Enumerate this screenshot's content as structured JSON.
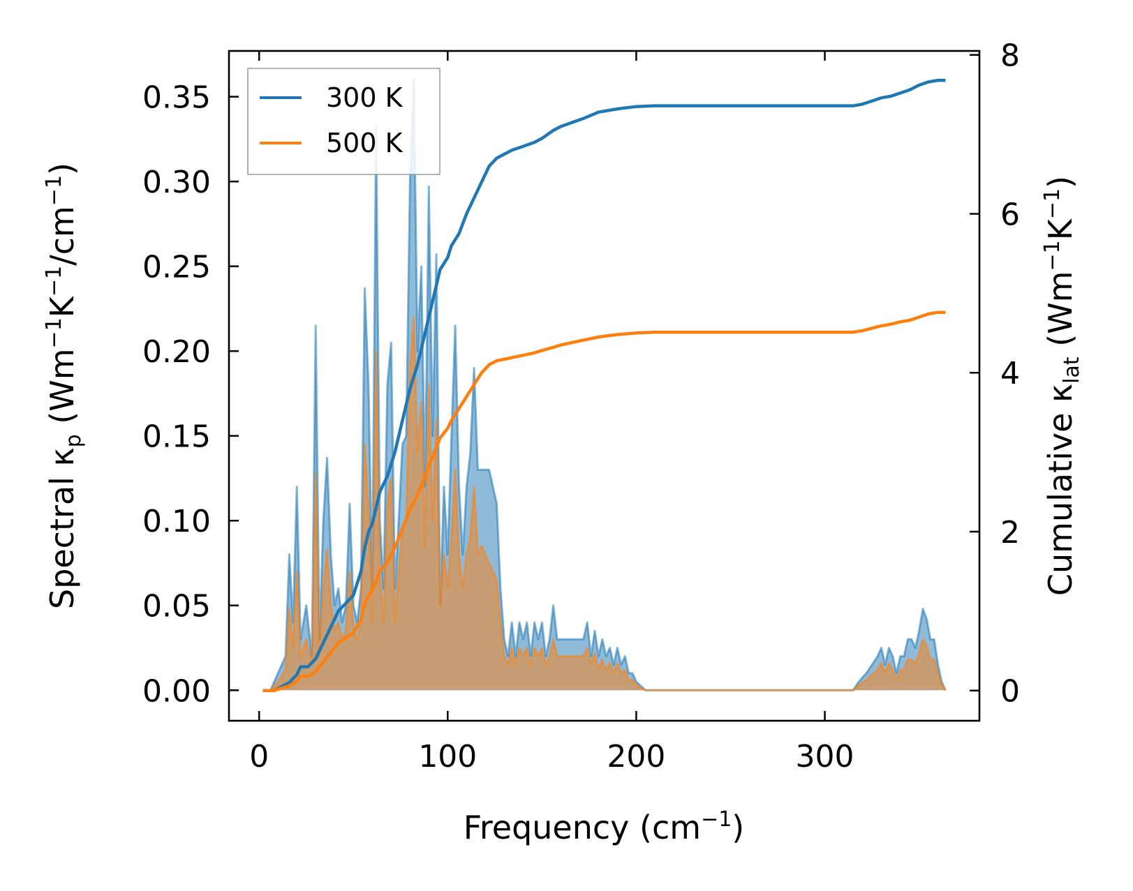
{
  "chart_data": {
    "type": "line",
    "title": "",
    "xlabel": "Frequency (cm⁻¹)",
    "ylabel_left": "Spectral κₚ (Wm⁻¹K⁻¹/cm⁻¹)",
    "ylabel_right": "Cumulative κ_lat (Wm⁻¹K⁻¹)",
    "xlabel_parts": [
      "Frequency (cm",
      "−1",
      ")"
    ],
    "ylabel_left_parts": [
      "Spectral κ",
      "p",
      " (Wm",
      "−1",
      "K",
      "−1",
      "/cm",
      "−1",
      ")"
    ],
    "ylabel_right_parts": [
      "Cumulative κ",
      "lat",
      " (Wm",
      "−1",
      "K",
      "−1",
      ")"
    ],
    "xlim": [
      -16,
      382
    ],
    "ylim_left": [
      -0.018,
      0.377
    ],
    "ylim_right": [
      -0.38,
      8.05
    ],
    "xticks": [
      0,
      100,
      200,
      300
    ],
    "xtick_labels": [
      "0",
      "100",
      "200",
      "300"
    ],
    "yticks_left": [
      0.0,
      0.05,
      0.1,
      0.15,
      0.2,
      0.25,
      0.3,
      0.35
    ],
    "ytick_left_labels": [
      "0.00",
      "0.05",
      "0.10",
      "0.15",
      "0.20",
      "0.25",
      "0.30",
      "0.35"
    ],
    "yticks_right": [
      0,
      2,
      4,
      6,
      8
    ],
    "ytick_right_labels": [
      "0",
      "2",
      "4",
      "6",
      "8"
    ],
    "legend": {
      "position": "top-left",
      "entries": [
        "300 K",
        "500 K"
      ]
    },
    "colors": {
      "300 K": "#1f77b4",
      "500 K": "#ff7f0e",
      "fill_300K": "#1f77b4",
      "fill_500K": "#ff7f0e"
    },
    "series": [
      {
        "name": "300 K",
        "axis": "left",
        "kind": "spectral",
        "x": [
          2,
          6,
          10,
          14,
          16,
          18,
          20,
          22,
          25,
          28,
          30,
          32,
          34,
          36,
          38,
          40,
          42,
          44,
          46,
          48,
          50,
          52,
          54,
          56,
          58,
          60,
          62,
          64,
          66,
          68,
          70,
          72,
          74,
          76,
          78,
          80,
          82,
          84,
          86,
          88,
          90,
          92,
          94,
          96,
          98,
          100,
          102,
          104,
          106,
          108,
          110,
          112,
          114,
          116,
          118,
          120,
          122,
          124,
          126,
          128,
          130,
          132,
          134,
          136,
          138,
          140,
          142,
          144,
          146,
          148,
          150,
          152,
          154,
          156,
          158,
          160,
          162,
          164,
          166,
          168,
          170,
          172,
          174,
          176,
          178,
          180,
          182,
          184,
          186,
          188,
          190,
          192,
          194,
          196,
          198,
          200,
          205,
          210,
          215,
          230,
          260,
          300,
          315,
          318,
          322,
          325,
          328,
          330,
          332,
          334,
          336,
          338,
          340,
          342,
          344,
          346,
          348,
          350,
          352,
          354,
          356,
          358,
          360,
          362,
          364
        ],
        "y": [
          0,
          0,
          0.01,
          0.02,
          0.08,
          0.04,
          0.12,
          0.03,
          0.05,
          0.02,
          0.215,
          0.03,
          0.1,
          0.137,
          0.08,
          0.05,
          0.06,
          0.04,
          0.05,
          0.11,
          0.05,
          0.04,
          0.06,
          0.237,
          0.18,
          0.06,
          0.332,
          0.1,
          0.06,
          0.18,
          0.205,
          0.06,
          0.1,
          0.145,
          0.15,
          0.3,
          0.36,
          0.2,
          0.25,
          0.12,
          0.297,
          0.15,
          0.257,
          0.05,
          0.12,
          0.08,
          0.15,
          0.215,
          0.12,
          0.08,
          0.12,
          0.14,
          0.19,
          0.13,
          0.13,
          0.13,
          0.13,
          0.12,
          0.11,
          0.06,
          0.03,
          0.02,
          0.04,
          0.02,
          0.04,
          0.03,
          0.04,
          0.02,
          0.04,
          0.03,
          0.04,
          0.02,
          0.03,
          0.05,
          0.03,
          0.03,
          0.03,
          0.03,
          0.03,
          0.03,
          0.03,
          0.03,
          0.04,
          0.02,
          0.035,
          0.02,
          0.03,
          0.02,
          0.025,
          0.015,
          0.025,
          0.015,
          0.02,
          0.01,
          0.01,
          0.005,
          0,
          0,
          0,
          0,
          0,
          0,
          0,
          0.005,
          0.01,
          0.015,
          0.02,
          0.025,
          0.015,
          0.025,
          0.02,
          0.01,
          0.02,
          0.02,
          0.03,
          0.03,
          0.025,
          0.035,
          0.048,
          0.042,
          0.03,
          0.03,
          0.015,
          0.005,
          0
        ]
      },
      {
        "name": "500 K",
        "axis": "left",
        "kind": "spectral",
        "x": [
          2,
          6,
          10,
          14,
          16,
          18,
          20,
          22,
          25,
          28,
          30,
          32,
          34,
          36,
          38,
          40,
          42,
          44,
          46,
          48,
          50,
          52,
          54,
          56,
          58,
          60,
          62,
          64,
          66,
          68,
          70,
          72,
          74,
          76,
          78,
          80,
          82,
          84,
          86,
          88,
          90,
          92,
          94,
          96,
          98,
          100,
          102,
          104,
          106,
          108,
          110,
          112,
          114,
          116,
          118,
          120,
          122,
          124,
          126,
          128,
          130,
          132,
          134,
          136,
          138,
          140,
          142,
          144,
          146,
          148,
          150,
          152,
          154,
          156,
          158,
          160,
          162,
          164,
          166,
          168,
          170,
          172,
          174,
          176,
          178,
          180,
          182,
          184,
          186,
          188,
          190,
          192,
          194,
          196,
          198,
          200,
          205,
          210,
          215,
          230,
          260,
          300,
          315,
          318,
          322,
          325,
          328,
          330,
          332,
          334,
          336,
          338,
          340,
          342,
          344,
          346,
          348,
          350,
          352,
          354,
          356,
          358,
          360,
          362,
          364
        ],
        "y": [
          0,
          0,
          0.005,
          0.012,
          0.048,
          0.025,
          0.07,
          0.02,
          0.03,
          0.015,
          0.128,
          0.02,
          0.06,
          0.083,
          0.05,
          0.035,
          0.04,
          0.03,
          0.035,
          0.07,
          0.035,
          0.03,
          0.04,
          0.145,
          0.11,
          0.04,
          0.2,
          0.07,
          0.04,
          0.11,
          0.125,
          0.04,
          0.07,
          0.095,
          0.1,
          0.19,
          0.22,
          0.14,
          0.17,
          0.085,
          0.18,
          0.1,
          0.16,
          0.05,
          0.08,
          0.06,
          0.09,
          0.13,
          0.08,
          0.06,
          0.08,
          0.09,
          0.12,
          0.08,
          0.085,
          0.08,
          0.075,
          0.07,
          0.065,
          0.04,
          0.02,
          0.015,
          0.025,
          0.015,
          0.025,
          0.02,
          0.025,
          0.015,
          0.025,
          0.02,
          0.025,
          0.015,
          0.02,
          0.03,
          0.02,
          0.02,
          0.02,
          0.02,
          0.02,
          0.02,
          0.02,
          0.02,
          0.025,
          0.015,
          0.022,
          0.012,
          0.018,
          0.012,
          0.016,
          0.01,
          0.016,
          0.01,
          0.012,
          0.006,
          0.006,
          0.003,
          0,
          0,
          0,
          0,
          0,
          0,
          0,
          0.003,
          0.006,
          0.009,
          0.012,
          0.016,
          0.01,
          0.016,
          0.012,
          0.006,
          0.012,
          0.012,
          0.018,
          0.018,
          0.016,
          0.022,
          0.03,
          0.026,
          0.018,
          0.018,
          0.01,
          0.003,
          0
        ]
      },
      {
        "name": "300 K",
        "axis": "right",
        "kind": "cumulative",
        "x": [
          2,
          8,
          12,
          16,
          18,
          20,
          22,
          26,
          30,
          32,
          34,
          38,
          42,
          46,
          50,
          54,
          56,
          58,
          60,
          62,
          64,
          66,
          68,
          72,
          76,
          80,
          84,
          88,
          92,
          96,
          100,
          102,
          106,
          110,
          114,
          118,
          122,
          126,
          130,
          134,
          140,
          146,
          150,
          156,
          160,
          166,
          172,
          180,
          190,
          200,
          210,
          300,
          315,
          320,
          325,
          330,
          335,
          340,
          345,
          350,
          355,
          360,
          364
        ],
        "y": [
          0,
          0,
          0.05,
          0.1,
          0.15,
          0.2,
          0.3,
          0.3,
          0.4,
          0.5,
          0.6,
          0.8,
          1.0,
          1.1,
          1.2,
          1.5,
          1.8,
          2.0,
          2.1,
          2.3,
          2.5,
          2.6,
          2.7,
          3.0,
          3.4,
          3.8,
          4.1,
          4.5,
          4.9,
          5.3,
          5.45,
          5.6,
          5.75,
          6.0,
          6.2,
          6.4,
          6.6,
          6.7,
          6.75,
          6.8,
          6.85,
          6.9,
          6.95,
          7.05,
          7.1,
          7.15,
          7.2,
          7.28,
          7.32,
          7.35,
          7.36,
          7.36,
          7.36,
          7.38,
          7.42,
          7.46,
          7.48,
          7.52,
          7.56,
          7.62,
          7.66,
          7.68,
          7.68
        ]
      },
      {
        "name": "500 K",
        "axis": "right",
        "kind": "cumulative",
        "x": [
          2,
          8,
          12,
          16,
          18,
          20,
          22,
          26,
          30,
          32,
          34,
          38,
          42,
          46,
          50,
          54,
          56,
          58,
          60,
          62,
          64,
          66,
          68,
          72,
          76,
          80,
          84,
          88,
          92,
          96,
          100,
          102,
          106,
          110,
          114,
          118,
          122,
          126,
          130,
          134,
          140,
          146,
          150,
          156,
          160,
          166,
          172,
          180,
          190,
          200,
          210,
          300,
          315,
          320,
          325,
          330,
          335,
          340,
          345,
          350,
          355,
          360,
          364
        ],
        "y": [
          0,
          0,
          0.03,
          0.06,
          0.09,
          0.12,
          0.18,
          0.18,
          0.24,
          0.3,
          0.36,
          0.48,
          0.6,
          0.66,
          0.72,
          0.9,
          1.08,
          1.2,
          1.26,
          1.38,
          1.5,
          1.56,
          1.62,
          1.8,
          2.04,
          2.28,
          2.46,
          2.7,
          2.94,
          3.18,
          3.3,
          3.4,
          3.55,
          3.7,
          3.85,
          4.0,
          4.1,
          4.15,
          4.17,
          4.19,
          4.22,
          4.25,
          4.28,
          4.32,
          4.35,
          4.38,
          4.41,
          4.45,
          4.48,
          4.5,
          4.51,
          4.51,
          4.51,
          4.53,
          4.56,
          4.59,
          4.61,
          4.64,
          4.66,
          4.7,
          4.74,
          4.76,
          4.76
        ]
      }
    ]
  }
}
